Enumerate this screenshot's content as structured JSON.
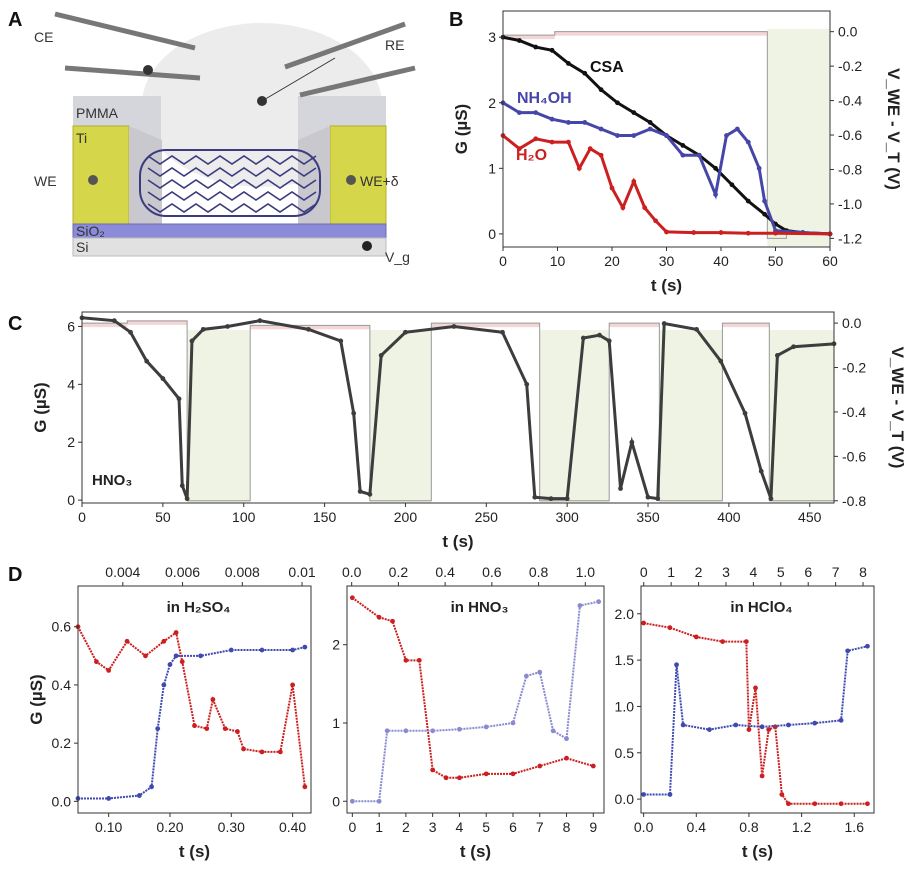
{
  "panels": {
    "A": "A",
    "B": "B",
    "C": "C",
    "D": "D"
  },
  "schematic": {
    "labels": {
      "ce": "CE",
      "re": "RE",
      "pmma": "PMMA",
      "ti": "Ti",
      "we": "WE",
      "we_delta": "WE+δ",
      "sio2": "SiO₂",
      "si": "Si",
      "vg": "V_g"
    },
    "colors": {
      "ti": "#d9d94a",
      "sio2": "#8888d8",
      "si": "#e2e2e2",
      "pmma": "#d7d7dc",
      "tube": "#4a4a8a",
      "droplet": "#ececec"
    }
  },
  "chart_data": [
    {
      "id": "B",
      "type": "line",
      "ylabel": "G (µS)",
      "y2label": "V_WE - V_T (V)",
      "xlabel": "t (s)",
      "xlim": [
        0,
        60
      ],
      "ylim": [
        -0.2,
        3.4
      ],
      "y2lim": [
        -1.25,
        0.12
      ],
      "xticks": [
        0,
        10,
        20,
        30,
        40,
        50,
        60
      ],
      "yticks": [
        0,
        1,
        2,
        3
      ],
      "y2ticks": [
        0.0,
        -0.2,
        -0.4,
        -0.6,
        -0.8,
        -1.0,
        -1.2
      ],
      "series": [
        {
          "name": "CSA",
          "color": "#111111",
          "x": [
            0,
            3,
            6,
            9,
            12,
            15,
            18,
            21,
            24,
            27,
            30,
            33,
            36,
            39,
            42,
            45,
            48,
            50,
            52,
            55,
            60
          ],
          "y": [
            3.0,
            2.95,
            2.85,
            2.8,
            2.6,
            2.45,
            2.2,
            2.0,
            1.85,
            1.7,
            1.5,
            1.35,
            1.2,
            1.0,
            0.75,
            0.5,
            0.3,
            0.15,
            0.05,
            0.02,
            0.0
          ]
        },
        {
          "name": "NH₄OH",
          "color": "#4646a8",
          "x": [
            0,
            3,
            6,
            9,
            12,
            15,
            18,
            21,
            24,
            27,
            30,
            33,
            36,
            39,
            41,
            43,
            45,
            47,
            48,
            50,
            55,
            60
          ],
          "y": [
            2.0,
            1.85,
            1.85,
            1.75,
            1.7,
            1.7,
            1.6,
            1.5,
            1.5,
            1.6,
            1.5,
            1.2,
            1.2,
            0.6,
            1.5,
            1.6,
            1.4,
            1.0,
            0.5,
            0.05,
            0.02,
            0.0
          ]
        },
        {
          "name": "H₂O",
          "color": "#cc1f1f",
          "x": [
            0,
            3,
            6,
            9,
            12,
            14,
            16,
            18,
            20,
            22,
            24,
            26,
            28,
            30,
            35,
            40,
            45,
            50,
            60
          ],
          "y": [
            1.5,
            1.3,
            1.45,
            1.4,
            1.4,
            1.0,
            1.3,
            1.2,
            0.7,
            0.4,
            0.8,
            0.4,
            0.2,
            0.03,
            0.02,
            0.02,
            0.01,
            0.01,
            0.0
          ]
        }
      ],
      "potential": {
        "x": [
          0,
          9.5,
          9.5,
          48.5,
          48.5,
          52,
          52,
          60
        ],
        "y": [
          -0.02,
          -0.02,
          0.0,
          0.0,
          -1.2,
          -1.2,
          -1.17,
          -1.17
        ]
      }
    },
    {
      "id": "C",
      "type": "line",
      "ylabel": "G (µS)",
      "y2label": "V_WE - V_T (V)",
      "xlabel": "t (s)",
      "annotation": "HNO₃",
      "xlim": [
        0,
        465
      ],
      "ylim": [
        -0.1,
        6.5
      ],
      "y2lim": [
        -0.81,
        0.05
      ],
      "xticks": [
        0,
        50,
        100,
        150,
        200,
        250,
        300,
        350,
        400,
        450
      ],
      "yticks": [
        0,
        2,
        4,
        6
      ],
      "y2ticks": [
        0.0,
        -0.2,
        -0.4,
        -0.6,
        -0.8
      ],
      "series": [
        {
          "name": "",
          "color": "#3d3d3d",
          "x": [
            0,
            20,
            30,
            40,
            50,
            60,
            62,
            65,
            68,
            75,
            90,
            110,
            140,
            160,
            168,
            172,
            178,
            185,
            200,
            230,
            260,
            275,
            280,
            290,
            300,
            310,
            320,
            326,
            333,
            340,
            350,
            356,
            360,
            380,
            395,
            410,
            420,
            426,
            430,
            440,
            465
          ],
          "y": [
            6.3,
            6.2,
            5.8,
            4.8,
            4.2,
            3.5,
            0.5,
            0.05,
            5.5,
            5.9,
            6.0,
            6.2,
            5.9,
            5.5,
            3.0,
            0.3,
            0.2,
            5.0,
            5.8,
            6.0,
            5.8,
            4.0,
            0.1,
            0.05,
            0.05,
            5.6,
            5.7,
            5.5,
            0.4,
            2.0,
            0.1,
            0.05,
            6.1,
            5.9,
            4.8,
            3.0,
            1.0,
            0.05,
            5.0,
            5.3,
            5.4
          ]
        }
      ],
      "potential": {
        "x": [
          0,
          28,
          28,
          65,
          65,
          104,
          104,
          178,
          178,
          216,
          216,
          283,
          283,
          326,
          326,
          357,
          357,
          396,
          396,
          425,
          425,
          465
        ],
        "y": [
          0.0,
          0.0,
          0.01,
          0.01,
          -0.8,
          -0.8,
          -0.01,
          -0.01,
          -0.8,
          -0.8,
          0.0,
          0.0,
          -0.8,
          -0.8,
          0.0,
          0.0,
          -0.8,
          -0.8,
          0.0,
          0.0,
          -0.8,
          -0.8
        ]
      }
    },
    {
      "id": "D1",
      "type": "scatter",
      "ylabel": "G (µS)",
      "xlabel": "t (s)",
      "annotation": "in H₂SO₄",
      "xlim": [
        0.05,
        0.43
      ],
      "ylim": [
        -0.04,
        0.74
      ],
      "xticks": [
        0.1,
        0.2,
        0.3,
        0.4
      ],
      "yticks": [
        0.0,
        0.2,
        0.4,
        0.6
      ],
      "top_xlim": [
        0.0025,
        0.0103
      ],
      "top_xticks": [
        0.004,
        0.006,
        0.008,
        0.01
      ],
      "series": [
        {
          "name": "",
          "color": "#cc1f1f",
          "x": [
            0.05,
            0.08,
            0.1,
            0.13,
            0.16,
            0.19,
            0.21,
            0.22,
            0.24,
            0.26,
            0.27,
            0.29,
            0.31,
            0.32,
            0.35,
            0.38,
            0.4,
            0.42
          ],
          "y": [
            0.6,
            0.48,
            0.45,
            0.55,
            0.5,
            0.55,
            0.58,
            0.48,
            0.26,
            0.25,
            0.35,
            0.25,
            0.24,
            0.18,
            0.17,
            0.17,
            0.4,
            0.05
          ]
        },
        {
          "name": "",
          "color": "#3f4ab0",
          "x": [
            0.05,
            0.1,
            0.15,
            0.17,
            0.18,
            0.19,
            0.2,
            0.21,
            0.25,
            0.3,
            0.35,
            0.4,
            0.42
          ],
          "y": [
            0.01,
            0.01,
            0.02,
            0.05,
            0.25,
            0.4,
            0.47,
            0.5,
            0.5,
            0.52,
            0.52,
            0.52,
            0.53
          ]
        }
      ]
    },
    {
      "id": "D2",
      "type": "scatter",
      "ylabel": "",
      "xlabel": "t (s)",
      "annotation": "in HNO₃",
      "xlim": [
        -0.2,
        9.4
      ],
      "ylim": [
        -0.15,
        2.75
      ],
      "xticks": [
        0,
        1,
        2,
        3,
        4,
        5,
        6,
        7,
        8,
        9
      ],
      "yticks": [
        0,
        1,
        2
      ],
      "top_xlim": [
        -0.02,
        1.08
      ],
      "top_xticks": [
        0.0,
        0.2,
        0.4,
        0.6,
        0.8,
        1.0
      ],
      "series": [
        {
          "name": "",
          "color": "#cc1f1f",
          "x": [
            0,
            1,
            1.5,
            2,
            2.5,
            3,
            3.5,
            4,
            5,
            6,
            7,
            8,
            9
          ],
          "y": [
            2.6,
            2.35,
            2.3,
            1.8,
            1.8,
            0.4,
            0.3,
            0.3,
            0.35,
            0.35,
            0.45,
            0.55,
            0.45
          ]
        },
        {
          "name": "",
          "color": "#8a8ad0",
          "x": [
            0,
            1,
            1.3,
            2,
            3,
            4,
            5,
            6,
            6.5,
            7,
            7.5,
            8,
            8.5,
            9.2
          ],
          "y": [
            0.0,
            0.0,
            0.9,
            0.9,
            0.9,
            0.92,
            0.95,
            1.0,
            1.6,
            1.65,
            0.9,
            0.8,
            2.5,
            2.55
          ]
        }
      ]
    },
    {
      "id": "D3",
      "type": "scatter",
      "ylabel": "",
      "xlabel": "t (s)",
      "annotation": "in HClO₄",
      "xlim": [
        -0.02,
        1.75
      ],
      "ylim": [
        -0.15,
        2.3
      ],
      "xticks": [
        0.0,
        0.4,
        0.8,
        1.2,
        1.6
      ],
      "yticks": [
        0.0,
        0.5,
        1.0,
        1.5,
        2.0
      ],
      "top_xlim": [
        -0.1,
        8.4
      ],
      "top_xticks": [
        0,
        1,
        2,
        3,
        4,
        5,
        6,
        7,
        8
      ],
      "series": [
        {
          "name": "",
          "color": "#cc1f1f",
          "x": [
            0.0,
            0.2,
            0.4,
            0.6,
            0.78,
            0.8,
            0.85,
            0.9,
            0.95,
            1.0,
            1.05,
            1.1,
            1.3,
            1.5,
            1.7
          ],
          "y": [
            1.9,
            1.85,
            1.75,
            1.7,
            1.7,
            0.75,
            1.2,
            0.25,
            0.75,
            0.78,
            0.05,
            -0.05,
            -0.05,
            -0.05,
            -0.05
          ]
        },
        {
          "name": "",
          "color": "#3f4ab0",
          "x": [
            0.0,
            0.2,
            0.25,
            0.3,
            0.5,
            0.7,
            0.9,
            1.1,
            1.3,
            1.5,
            1.55,
            1.7
          ],
          "y": [
            0.05,
            0.05,
            1.45,
            0.8,
            0.75,
            0.8,
            0.78,
            0.8,
            0.82,
            0.85,
            1.6,
            1.65
          ]
        }
      ]
    }
  ]
}
